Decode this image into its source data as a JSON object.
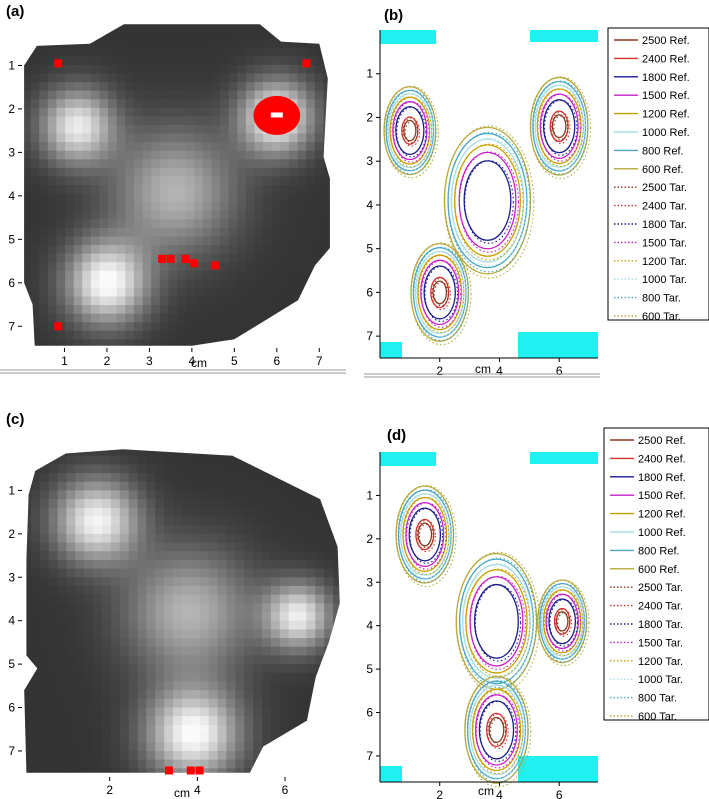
{
  "figure": {
    "panels": [
      "(a)",
      "(b)",
      "(c)",
      "(d)"
    ],
    "axis_label": "cm"
  },
  "colors": {
    "2500": "#8b3a1e",
    "2400": "#d0302a",
    "1800": "#1c1c8c",
    "1500": "#c71fc7",
    "1200": "#c8a000",
    "1000": "#a8dde6",
    "800": "#4aa8c4",
    "600": "#b7a93a",
    "cyan_mask": "#20f0f0",
    "hot_pixel": "#ff0000"
  },
  "chart_data": [
    {
      "panel": "(a)",
      "type": "heatmap",
      "xlabel": "cm",
      "xticks": [
        1,
        2,
        3,
        4,
        5,
        6,
        7
      ],
      "yticks": [
        1,
        2,
        3,
        4,
        5,
        6,
        7
      ],
      "xlim": [
        0,
        7.3
      ],
      "ylim": [
        7.5,
        0
      ],
      "blobs": [
        {
          "x": 1.3,
          "y": 2.4,
          "r": 0.9,
          "intensity": 0.85
        },
        {
          "x": 6.0,
          "y": 2.2,
          "r": 0.9,
          "intensity": 0.95
        },
        {
          "x": 3.6,
          "y": 3.9,
          "r": 1.5,
          "intensity": 0.6
        },
        {
          "x": 2.0,
          "y": 6.0,
          "r": 1.0,
          "intensity": 0.95
        }
      ],
      "hot_pixels": [
        [
          0.85,
          0.95
        ],
        [
          6.7,
          0.95
        ],
        [
          0.85,
          7.0
        ],
        [
          3.3,
          5.45
        ],
        [
          3.5,
          5.45
        ],
        [
          3.85,
          5.45
        ],
        [
          4.05,
          5.55
        ],
        [
          4.55,
          5.6
        ]
      ],
      "hot_spot": {
        "x": 6.0,
        "y": 2.15,
        "rx": 0.55,
        "ry": 0.45
      }
    },
    {
      "panel": "(b)",
      "type": "line",
      "xlabel": "cm",
      "xticks": [
        2,
        4,
        6
      ],
      "yticks": [
        1,
        2,
        3,
        4,
        5,
        6,
        7
      ],
      "xlim": [
        0,
        7.3
      ],
      "ylim": [
        7.5,
        0
      ],
      "legend": [
        "2500 Ref.",
        "2400 Ref.",
        "1800 Ref.",
        "1500 Ref.",
        "1200 Ref.",
        "1000 Ref.",
        "800 Ref.",
        "600 Ref.",
        "2500 Tar.",
        "2400 Tar.",
        "1800 Tar.",
        "1500 Tar.",
        "1200 Tar.",
        "1000 Tar.",
        "800 Tar.",
        "600 Tar."
      ],
      "blobs": [
        {
          "x": 1.0,
          "y": 2.3,
          "r": 0.9,
          "intensity": 0.85
        },
        {
          "x": 6.0,
          "y": 2.2,
          "r": 1.0,
          "intensity": 0.95
        },
        {
          "x": 3.6,
          "y": 3.9,
          "r": 1.5,
          "intensity": 0.6
        },
        {
          "x": 2.0,
          "y": 6.0,
          "r": 1.0,
          "intensity": 0.95
        }
      ]
    },
    {
      "panel": "(c)",
      "type": "heatmap",
      "xlabel": "cm",
      "xticks": [
        2,
        4,
        6
      ],
      "yticks": [
        1,
        2,
        3,
        4,
        5,
        6,
        7
      ],
      "xlim": [
        0,
        7.3
      ],
      "ylim": [
        7.6,
        0
      ],
      "blobs": [
        {
          "x": 1.7,
          "y": 1.7,
          "r": 1.0,
          "intensity": 0.9
        },
        {
          "x": 3.8,
          "y": 3.8,
          "r": 1.5,
          "intensity": 0.6
        },
        {
          "x": 6.3,
          "y": 3.9,
          "r": 0.8,
          "intensity": 0.85
        },
        {
          "x": 3.9,
          "y": 6.6,
          "r": 1.1,
          "intensity": 0.95
        }
      ],
      "hot_pixels": [
        [
          3.35,
          7.45
        ],
        [
          3.85,
          7.45
        ],
        [
          4.05,
          7.45
        ]
      ]
    },
    {
      "panel": "(d)",
      "type": "line",
      "xlabel": "cm",
      "xticks": [
        2,
        4,
        6
      ],
      "yticks": [
        1,
        2,
        3,
        4,
        5,
        6,
        7
      ],
      "xlim": [
        0,
        7.3
      ],
      "ylim": [
        7.6,
        0
      ],
      "legend": [
        "2500 Ref.",
        "2400 Ref.",
        "1800 Ref.",
        "1500 Ref.",
        "1200 Ref.",
        "1000 Ref.",
        "800 Ref.",
        "600 Ref.",
        "2500 Tar.",
        "2400 Tar.",
        "1800 Tar.",
        "1500 Tar.",
        "1200 Tar.",
        "1000 Tar.",
        "800 Tar.",
        "600 Tar."
      ],
      "blobs": [
        {
          "x": 1.5,
          "y": 1.9,
          "r": 1.0,
          "intensity": 0.9
        },
        {
          "x": 3.9,
          "y": 3.9,
          "r": 1.4,
          "intensity": 0.6
        },
        {
          "x": 6.1,
          "y": 3.9,
          "r": 0.85,
          "intensity": 0.85
        },
        {
          "x": 3.9,
          "y": 6.4,
          "r": 1.1,
          "intensity": 0.95
        }
      ]
    }
  ]
}
